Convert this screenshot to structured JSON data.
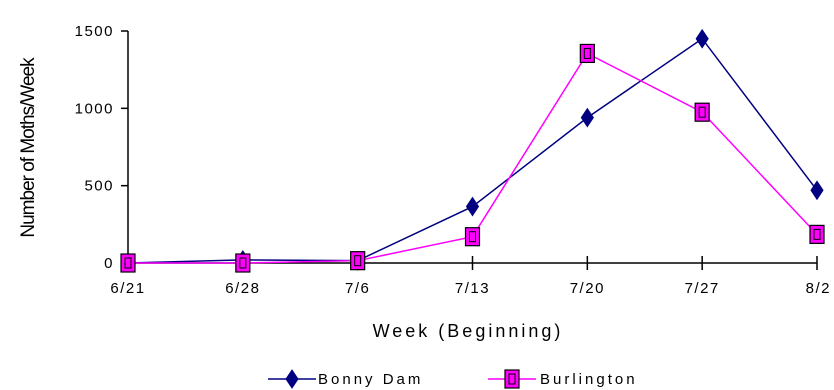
{
  "chart_data": {
    "type": "line",
    "title": "",
    "xlabel": "Week (Beginning)",
    "ylabel": "Number of Moths/Week",
    "categories": [
      "6/21",
      "6/28",
      "7/6",
      "7/13",
      "7/20",
      "7/27",
      "8/2"
    ],
    "ylim": [
      0,
      1500
    ],
    "yticks": [
      0,
      500,
      1000,
      1500
    ],
    "grid": false,
    "legend_position": "bottom",
    "series": [
      {
        "name": "Bonny Dam",
        "values": [
          0,
          20,
          15,
          365,
          940,
          1450,
          470
        ],
        "color": "#000080",
        "marker": "diamond"
      },
      {
        "name": "Burlington",
        "values": [
          0,
          0,
          15,
          170,
          1355,
          975,
          185
        ],
        "color": "#ff00ff",
        "marker": "square"
      }
    ]
  }
}
